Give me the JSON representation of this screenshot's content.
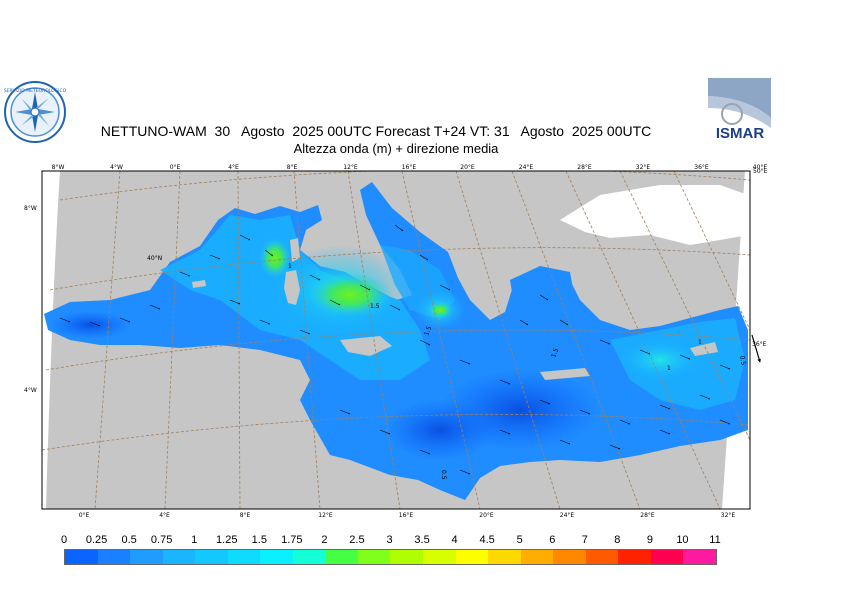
{
  "title": {
    "line1": "NETTUNO-WAM  30   Agosto  2025 00UTC Forecast T+24 VT: 31   Agosto  2025 00UTC",
    "line2": "Altezza onda (m) + direzione media"
  },
  "logos": {
    "left": {
      "icon": "compass-rose-logo",
      "text": "SERVIZIO METEOROLOGICO"
    },
    "right": {
      "icon": "ismar-logo",
      "text": "ISMAR"
    }
  },
  "map": {
    "top_lon_ticks": [
      "8°W",
      "4°W",
      "0°E",
      "4°E",
      "8°E",
      "12°E",
      "16°E",
      "20°E",
      "24°E",
      "28°E",
      "32°E",
      "36°E",
      "40°E"
    ],
    "top_right_label": "50°E",
    "bottom_lon_ticks": [
      "0°E",
      "4°E",
      "8°E",
      "12°E",
      "16°E",
      "20°E",
      "24°E",
      "28°E",
      "32°E"
    ],
    "left_lat_ticks": [
      "8°W",
      "40°N",
      "4°W"
    ],
    "right_lat_ticks": [
      "36°E"
    ],
    "contour_labels": [
      "1.5",
      "1.5",
      "1.5",
      "1",
      "1",
      "1",
      "0.5",
      "0.5"
    ],
    "colors": {
      "land": "#c6c6c6",
      "outside": "#ffffff",
      "graticule": "#a0805a"
    }
  },
  "colorbar": {
    "labels": [
      "0",
      "0.25",
      "0.5",
      "0.75",
      "1",
      "1.25",
      "1.5",
      "1.75",
      "2",
      "2.5",
      "3",
      "3.5",
      "4",
      "4.5",
      "5",
      "6",
      "7",
      "8",
      "9",
      "10",
      "11"
    ],
    "colors": [
      "#0a64ff",
      "#1a80ff",
      "#209cff",
      "#1ab4ff",
      "#12c8ff",
      "#0ddcff",
      "#0af0ff",
      "#14ffd8",
      "#44ff44",
      "#80ff1a",
      "#b0ff00",
      "#d8ff00",
      "#ffff00",
      "#ffd800",
      "#ffae00",
      "#ff8800",
      "#ff5a00",
      "#ff2200",
      "#ff0050",
      "#ff1aa0"
    ]
  }
}
